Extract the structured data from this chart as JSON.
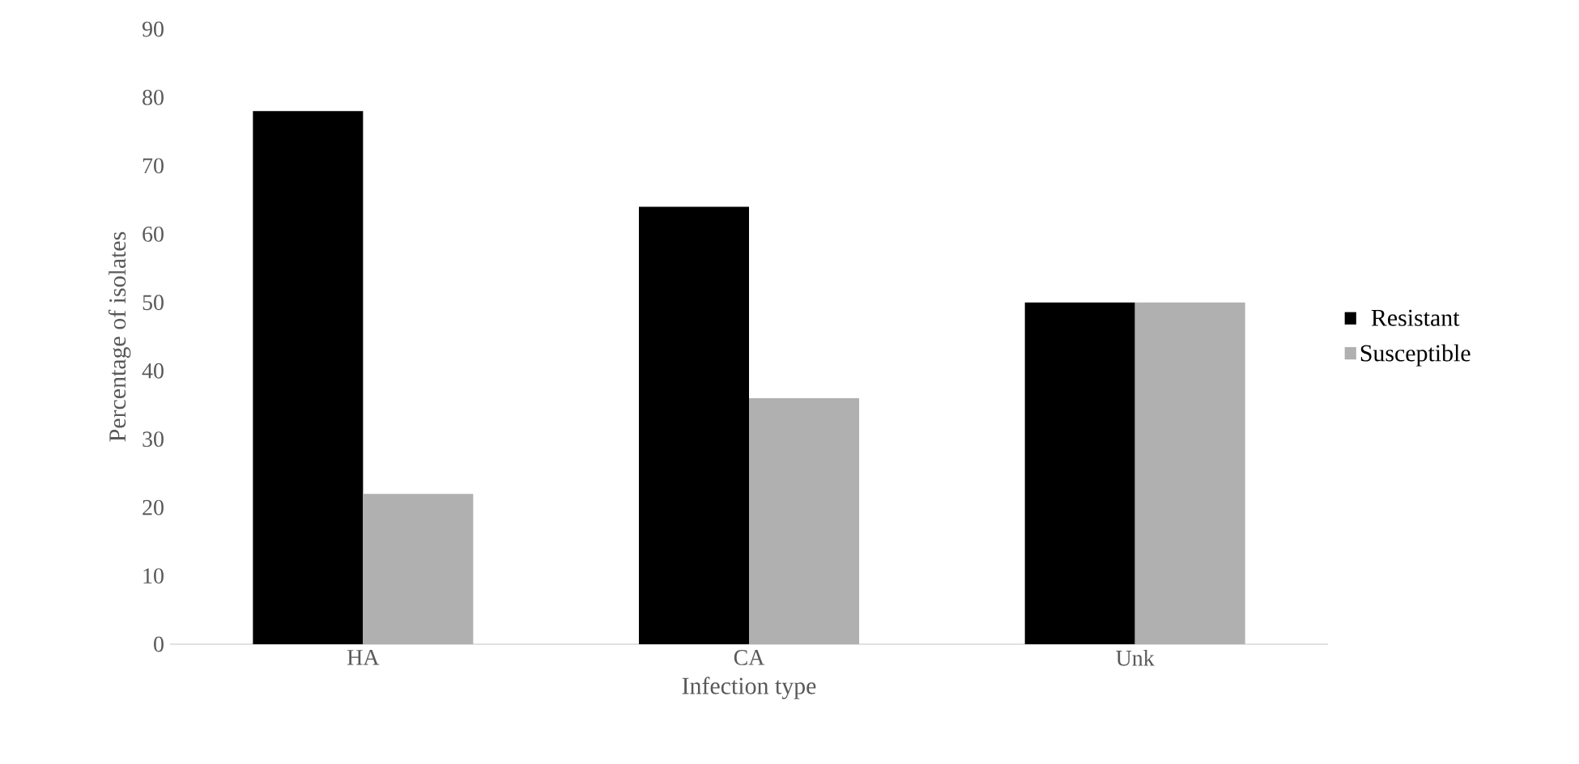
{
  "chart_data": {
    "type": "bar",
    "xlabel": "Infection type",
    "ylabel": "Percentage of isolates",
    "categories": [
      "HA",
      "CA",
      "Unk"
    ],
    "series": [
      {
        "name": "Resistant",
        "color": "#000000",
        "values": [
          78,
          64,
          50
        ]
      },
      {
        "name": "Susceptible",
        "color": "#b0b0b0",
        "values": [
          22,
          36,
          50
        ]
      }
    ],
    "ylim": [
      0,
      90
    ],
    "yticks": [
      0,
      10,
      20,
      30,
      40,
      50,
      60,
      70,
      80,
      90
    ],
    "legend": "right",
    "grid": false
  }
}
